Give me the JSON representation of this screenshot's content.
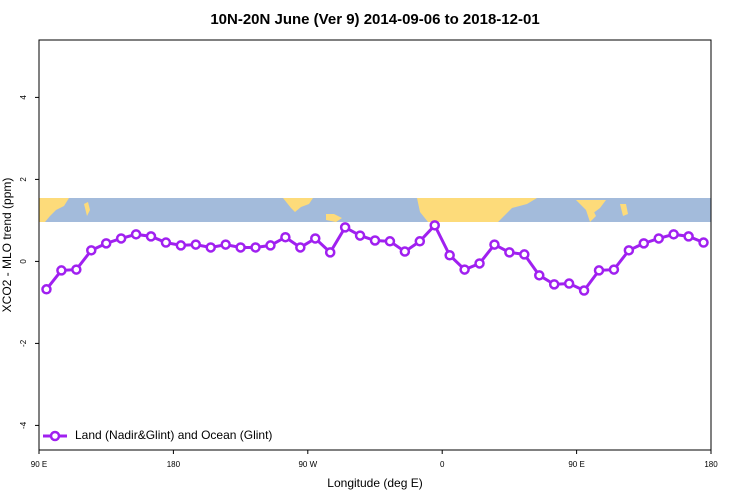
{
  "chart_data": {
    "type": "line",
    "title": "10N-20N June (Ver 9)   2014-09-06 to 2018-12-01",
    "xlabel": "Longitude (deg E)",
    "ylabel": "XCO2 - MLO trend (ppm)",
    "x": [
      95,
      105,
      115,
      125,
      135,
      145,
      155,
      165,
      175,
      185,
      195,
      205,
      215,
      225,
      235,
      245,
      255,
      265,
      275,
      285,
      295,
      305,
      315,
      325,
      335,
      345,
      355,
      365,
      375,
      385,
      395,
      405,
      415,
      425,
      435,
      445,
      455,
      465,
      475,
      485,
      495,
      505,
      515,
      525,
      535
    ],
    "series": [
      {
        "name": "Land (Nadir&Glint) and Ocean (Glint)",
        "color": "#a020f0",
        "values": [
          -0.68,
          -0.22,
          -0.2,
          0.27,
          0.44,
          0.56,
          0.66,
          0.61,
          0.46,
          0.39,
          0.41,
          0.34,
          0.41,
          0.34,
          0.34,
          0.39,
          0.59,
          0.34,
          0.56,
          0.22,
          0.83,
          0.63,
          0.51,
          0.49,
          0.24,
          0.49,
          0.88,
          0.15,
          -0.2,
          -0.05,
          0.41,
          0.22,
          0.17,
          -0.34,
          -0.56,
          -0.54,
          -0.71,
          -0.22,
          -0.2,
          0.27,
          0.44,
          0.56,
          0.66,
          0.61,
          0.46
        ]
      }
    ],
    "xlim": [
      90,
      540
    ],
    "xticks": [
      {
        "value": 90,
        "label": "90 E"
      },
      180,
      {
        "value": 270,
        "label": "90 W"
      },
      {
        "value": 360,
        "label": "0"
      },
      {
        "value": 450,
        "label": "90 E"
      },
      {
        "value": 540,
        "label": "180"
      }
    ],
    "ylim": [
      -4.6,
      5.4
    ],
    "yticks": [
      -4,
      -2,
      0,
      2,
      4
    ],
    "legend_position": "bottom-left"
  }
}
